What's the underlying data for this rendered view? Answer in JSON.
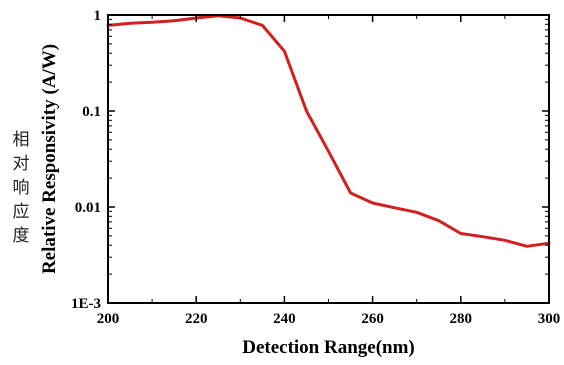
{
  "side_note": [
    "相",
    "对",
    "响",
    "应",
    "度"
  ],
  "chart_data": {
    "type": "line",
    "title": "",
    "xlabel": "Detection Range(nm)",
    "ylabel": "Relative Responsivity (A/W)",
    "xlim": [
      200,
      300
    ],
    "ylim": [
      0.001,
      1
    ],
    "yscale": "log",
    "x_ticks": [
      200,
      220,
      240,
      260,
      280,
      300
    ],
    "x_tick_labels": [
      "200",
      "220",
      "240",
      "260",
      "280",
      "300"
    ],
    "y_ticks": [
      1,
      0.1,
      0.01,
      0.001
    ],
    "y_tick_labels": [
      "1",
      "0.1",
      "0.01",
      "1E-3"
    ],
    "grid": false,
    "series": [
      {
        "color": "#d21f1f",
        "x": [
          200,
          205,
          210,
          215,
          220,
          225,
          230,
          235,
          240,
          245,
          250,
          255,
          260,
          265,
          270,
          275,
          280,
          285,
          290,
          295,
          300
        ],
        "y": [
          0.78,
          0.82,
          0.84,
          0.87,
          0.93,
          0.98,
          0.93,
          0.78,
          0.42,
          0.1,
          0.038,
          0.014,
          0.011,
          0.0098,
          0.0088,
          0.0072,
          0.0053,
          0.0049,
          0.0045,
          0.0039,
          0.0042
        ]
      }
    ]
  }
}
